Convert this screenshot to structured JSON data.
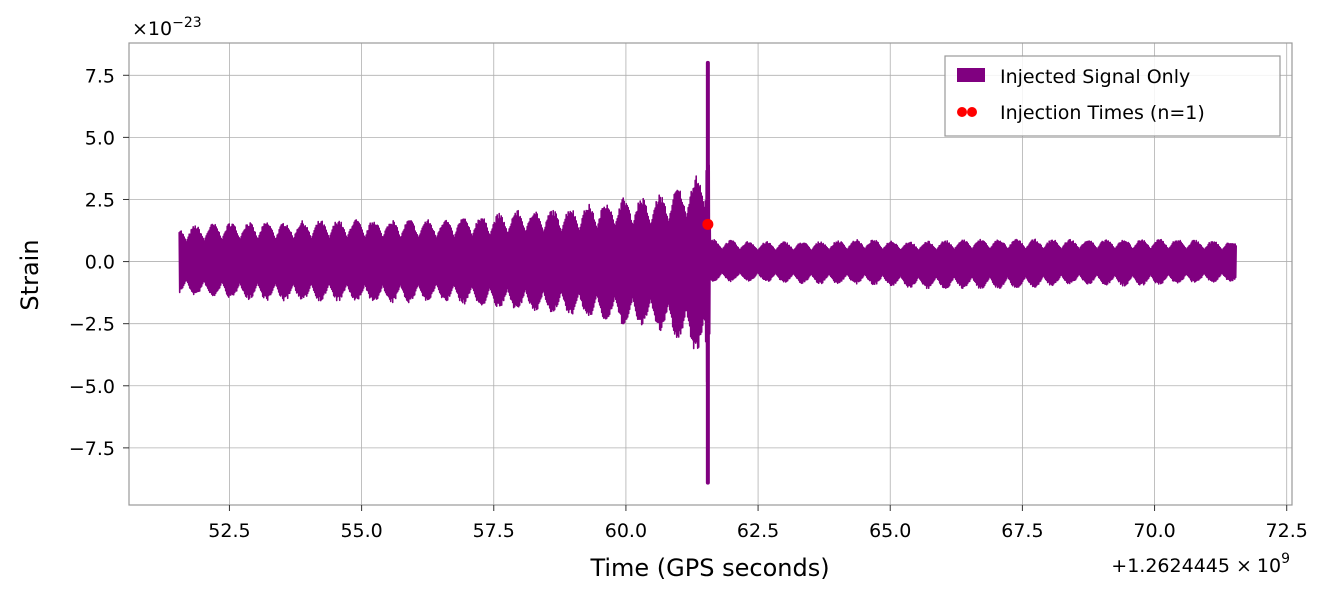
{
  "chart_data": {
    "type": "line",
    "title": "",
    "xlabel": "Time (GPS seconds)",
    "ylabel": "Strain",
    "x_offset_label": "+1.2624445",
    "x_offset_times": "×",
    "x_offset_base": "10",
    "x_offset_exp": "9",
    "y_scale_prefix": "×",
    "y_scale_base": "10",
    "y_scale_exp": "−23",
    "xlim": [
      50.6,
      72.6
    ],
    "ylim": [
      -9.8,
      8.8
    ],
    "xticks": [
      52.5,
      55.0,
      57.5,
      60.0,
      62.5,
      65.0,
      67.5,
      70.0,
      72.5
    ],
    "xtick_labels": [
      "52.5",
      "55.0",
      "57.5",
      "60.0",
      "62.5",
      "65.0",
      "67.5",
      "70.0",
      "72.5"
    ],
    "yticks": [
      7.5,
      5.0,
      2.5,
      0.0,
      -2.5,
      -5.0,
      -7.5
    ],
    "ytick_labels": [
      "7.5",
      "5.0",
      "2.5",
      "0.0",
      "−2.5",
      "−5.0",
      "−7.5"
    ],
    "grid": true,
    "legend_position": "top-right",
    "series": [
      {
        "name": "Injected Signal Only",
        "kind": "strain-envelope",
        "color": "#800080",
        "x_start": 51.55,
        "x_end": 71.55,
        "x": [
          51.55,
          52.5,
          53.5,
          54.5,
          55.5,
          56.5,
          57.5,
          58.0,
          58.5,
          59.0,
          59.5,
          60.0,
          60.5,
          61.0,
          61.3,
          61.5,
          61.55,
          61.6,
          62.5,
          63.5,
          64.5,
          65.5,
          66.5,
          67.5,
          68.5,
          69.5,
          70.5,
          71.55
        ],
        "y_upper": [
          1.4,
          1.6,
          1.6,
          1.7,
          1.7,
          1.7,
          1.9,
          2.1,
          2.1,
          2.2,
          2.4,
          2.6,
          2.6,
          3.0,
          3.4,
          4.0,
          8.0,
          0.9,
          0.8,
          0.8,
          0.9,
          0.8,
          0.9,
          0.9,
          0.9,
          0.9,
          0.9,
          0.8
        ],
        "y_lower": [
          -1.3,
          -1.5,
          -1.6,
          -1.6,
          -1.7,
          -1.6,
          -1.9,
          -2.0,
          -2.1,
          -2.2,
          -2.4,
          -2.6,
          -2.7,
          -3.2,
          -3.6,
          -4.0,
          -8.9,
          -0.8,
          -0.8,
          -0.9,
          -0.9,
          -1.1,
          -1.1,
          -1.1,
          -0.9,
          -1.0,
          -0.9,
          -0.8
        ]
      },
      {
        "name": "Injection Times (n=1)",
        "kind": "scatter",
        "color": "#ff0000",
        "points": [
          {
            "x": 61.55,
            "y": 1.5
          }
        ]
      }
    ]
  }
}
